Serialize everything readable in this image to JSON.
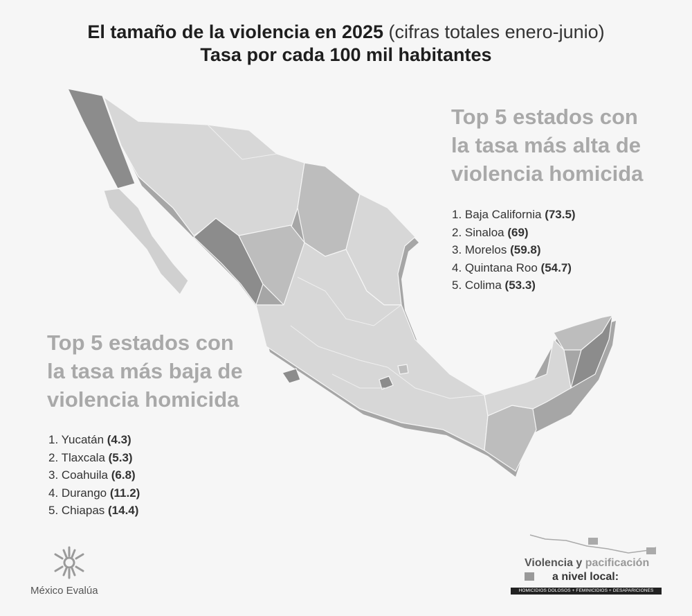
{
  "title": {
    "line1_bold": "El tamaño de la violencia en 2025",
    "line1_light": " (cifras totales enero-junio)",
    "line2": "Tasa por cada 100 mil habitantes"
  },
  "top_high": {
    "heading": [
      "Top 5 estados con",
      "la tasa más alta de",
      "violencia homicida"
    ],
    "items": [
      {
        "label": "1. Baja California ",
        "value": "(73.5)"
      },
      {
        "label": "2. Sinaloa ",
        "value": "(69)"
      },
      {
        "label": "3. Morelos ",
        "value": "(59.8)"
      },
      {
        "label": "4. Quintana Roo ",
        "value": "(54.7)"
      },
      {
        "label": "5. Colima ",
        "value": "(53.3)"
      }
    ]
  },
  "top_low": {
    "heading": [
      "Top 5 estados con",
      "la tasa más baja de",
      "violencia homicida"
    ],
    "items": [
      {
        "label": "1. Yucatán ",
        "value": "(4.3)"
      },
      {
        "label": "2. Tlaxcala ",
        "value": "(5.3)"
      },
      {
        "label": "3. Coahuila ",
        "value": "(6.8)"
      },
      {
        "label": "4. Durango ",
        "value": "(11.2)"
      },
      {
        "label": "5. Chiapas ",
        "value": "(14.4)"
      }
    ]
  },
  "colors": {
    "high": "#8c8c8c",
    "low": "#bdbdbd",
    "other": "#d7d7d7",
    "shadow": "#a4a4a4",
    "heading": "#a9a9a9"
  },
  "logos": {
    "mexico_evalua": "México Evalúa",
    "vp_line1_a": "Violencia y ",
    "vp_line1_b": "pacificación",
    "vp_line2": "a nivel local:",
    "vp_band": "HOMICIDIOS DOLOSOS + FEMINICIDIOS + DESAPARICIONES"
  }
}
